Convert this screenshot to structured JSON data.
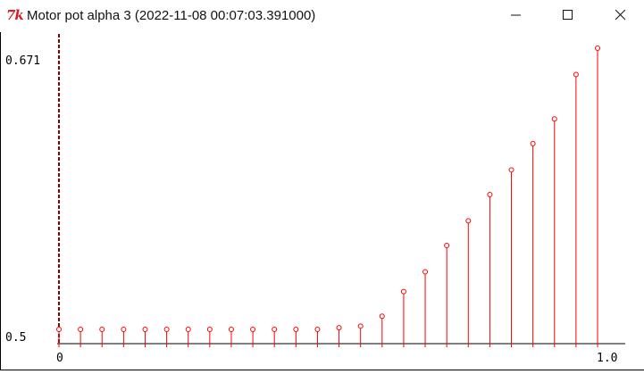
{
  "window": {
    "logo_text": "7k",
    "title": "Motor pot alpha 3 (2022-11-08 00:07:03.391000)"
  },
  "icons": {
    "app": "tk-feather-icon",
    "minimize": "minimize-icon",
    "maximize": "maximize-icon",
    "close": "close-icon"
  },
  "colors": {
    "series": "#ff0000",
    "axis": "#000000",
    "vertical_marker": "#8b0000"
  },
  "chart_data": {
    "type": "stem",
    "ytick_labels": [
      "0.671",
      "0.5"
    ],
    "xtick_labels": [
      "0",
      "1.0"
    ],
    "xlim": [
      0,
      1.0
    ],
    "ylim": [
      0.5,
      0.671
    ],
    "grid": false,
    "legend": "none",
    "x": [
      0.0,
      0.04,
      0.08,
      0.12,
      0.16,
      0.2,
      0.24,
      0.28,
      0.32,
      0.36,
      0.4,
      0.44,
      0.48,
      0.52,
      0.56,
      0.6,
      0.64,
      0.68,
      0.72,
      0.76,
      0.8,
      0.84,
      0.88,
      0.92,
      0.96,
      1.0
    ],
    "values": [
      0.5,
      0.5,
      0.5,
      0.5,
      0.5,
      0.5,
      0.5,
      0.5,
      0.5,
      0.5,
      0.5,
      0.5,
      0.5,
      0.501,
      0.502,
      0.508,
      0.523,
      0.535,
      0.551,
      0.566,
      0.582,
      0.597,
      0.613,
      0.628,
      0.655,
      0.671
    ]
  }
}
